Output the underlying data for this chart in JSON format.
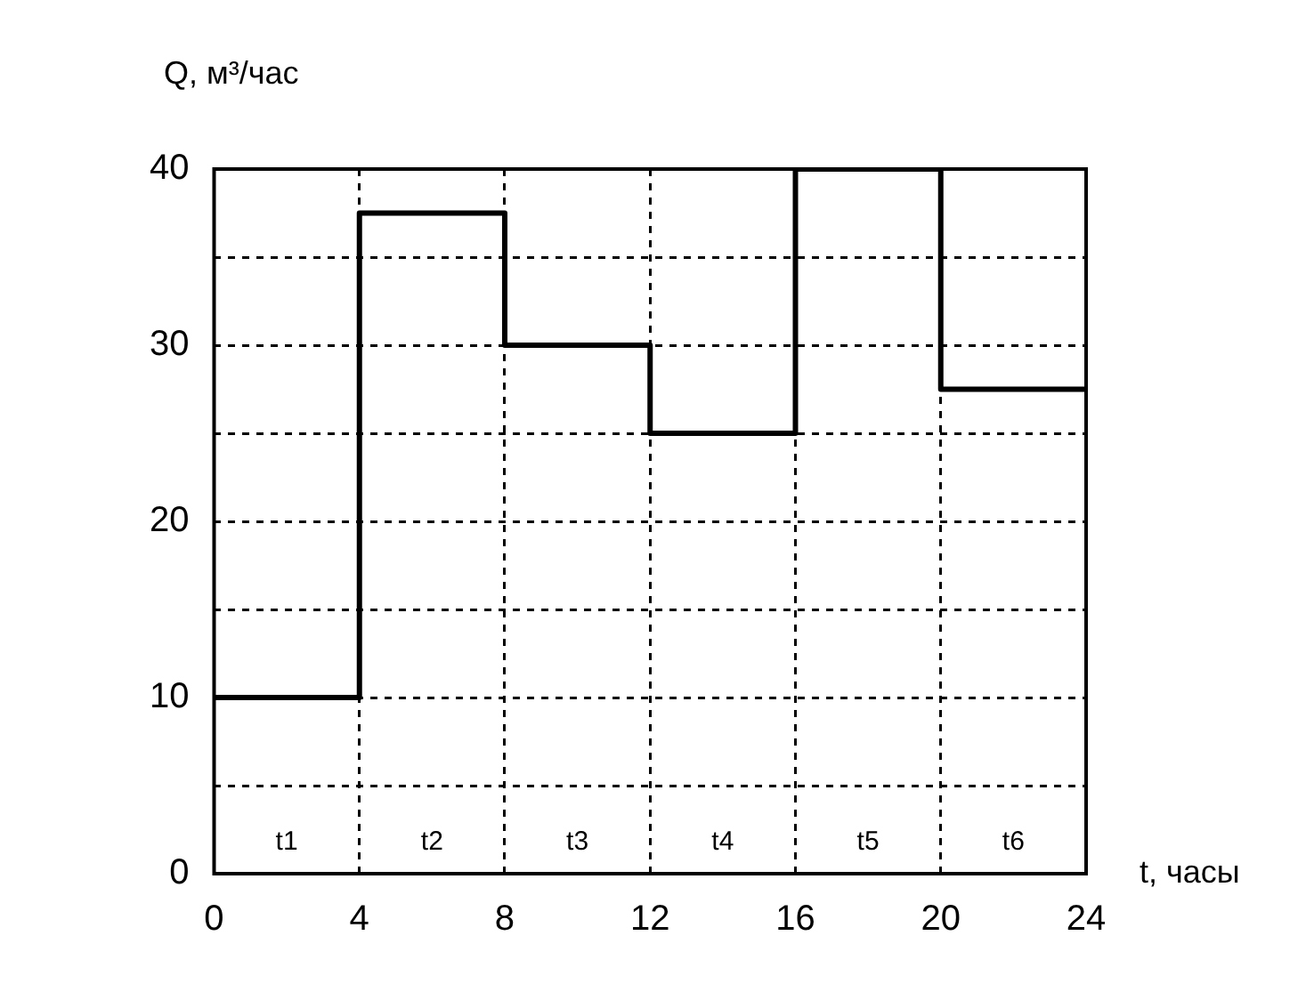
{
  "chart_data": {
    "type": "step",
    "xlabel": "t, часы",
    "ylabel": "Q, м³/час",
    "x": [
      0,
      4,
      8,
      12,
      16,
      20,
      24
    ],
    "series": [
      {
        "color": "#000000",
        "values": [
          10,
          37.5,
          30,
          25,
          40,
          27.5,
          27.5
        ]
      }
    ],
    "xlim": [
      0,
      24
    ],
    "xticks": [
      0,
      4,
      8,
      12,
      16,
      20,
      24
    ],
    "ylim": [
      0,
      40
    ],
    "yticks": [
      0,
      {
        "value": 5,
        "label": null
      },
      10,
      {
        "value": 15,
        "label": null
      },
      20,
      {
        "value": 25,
        "label": null
      },
      30,
      {
        "value": 35,
        "label": null
      },
      40
    ],
    "grid": true,
    "legend": false,
    "line_style": "solid",
    "marker": "none",
    "annotations": [
      "t1",
      "t2",
      "t3",
      "t4",
      "t5",
      "t6"
    ]
  }
}
